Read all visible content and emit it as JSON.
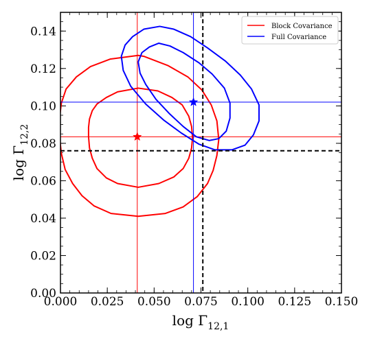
{
  "chart_data": {
    "type": "contour",
    "xlabel": "log Γ",
    "xlabel_sub": "12,1",
    "ylabel": "log Γ",
    "ylabel_sub": "12,2",
    "xlim": [
      0.0,
      0.15
    ],
    "ylim": [
      0.0,
      0.15
    ],
    "xticks": [
      0.0,
      0.025,
      0.05,
      0.075,
      0.1,
      0.125,
      0.15
    ],
    "xtick_labels": [
      "0.000",
      "0.025",
      "0.050",
      "0.075",
      "0.100",
      "0.125",
      "0.150"
    ],
    "yticks": [
      0.0,
      0.02,
      0.04,
      0.06,
      0.08,
      0.1,
      0.12,
      0.14
    ],
    "ytick_labels": [
      "0.00",
      "0.02",
      "0.04",
      "0.06",
      "0.08",
      "0.10",
      "0.12",
      "0.14"
    ],
    "legend_position": "top-right",
    "grid": false,
    "reference": {
      "x": 0.076,
      "y": 0.076,
      "color": "#000000",
      "style": "dashed"
    },
    "series": [
      {
        "name": "Block Covariance",
        "color": "#ff0000",
        "best_fit": {
          "x": 0.041,
          "y": 0.0835
        },
        "contours": [
          [
            [
              0.0415,
              0.1095
            ],
            [
              0.0305,
              0.1075
            ],
            [
              0.0245,
              0.1045
            ],
            [
              0.0195,
              0.101
            ],
            [
              0.017,
              0.0975
            ],
            [
              0.0155,
              0.093
            ],
            [
              0.015,
              0.0885
            ],
            [
              0.015,
              0.0835
            ],
            [
              0.0155,
              0.0775
            ],
            [
              0.017,
              0.072
            ],
            [
              0.0195,
              0.0665
            ],
            [
              0.0245,
              0.0615
            ],
            [
              0.0305,
              0.0585
            ],
            [
              0.0415,
              0.0565
            ],
            [
              0.0525,
              0.0585
            ],
            [
              0.0605,
              0.062
            ],
            [
              0.0655,
              0.0665
            ],
            [
              0.0685,
              0.072
            ],
            [
              0.07,
              0.0775
            ],
            [
              0.0705,
              0.083
            ],
            [
              0.07,
              0.089
            ],
            [
              0.0685,
              0.0945
            ],
            [
              0.065,
              0.1005
            ],
            [
              0.0595,
              0.1045
            ],
            [
              0.052,
              0.108
            ],
            [
              0.0415,
              0.1095
            ]
          ],
          [
            [
              0.0415,
              0.127
            ],
            [
              0.0265,
              0.125
            ],
            [
              0.016,
              0.121
            ],
            [
              0.0085,
              0.1155
            ],
            [
              0.003,
              0.109
            ],
            [
              0.0005,
              0.1015
            ],
            [
              -0.0005,
              0.0935
            ],
            [
              -0.0005,
              0.0835
            ],
            [
              0.0005,
              0.0745
            ],
            [
              0.0025,
              0.066
            ],
            [
              0.0065,
              0.0585
            ],
            [
              0.0115,
              0.052
            ],
            [
              0.018,
              0.0465
            ],
            [
              0.027,
              0.0425
            ],
            [
              0.0415,
              0.041
            ],
            [
              0.056,
              0.0425
            ],
            [
              0.0655,
              0.046
            ],
            [
              0.073,
              0.0515
            ],
            [
              0.0785,
              0.0585
            ],
            [
              0.0815,
              0.0655
            ],
            [
              0.0835,
              0.0735
            ],
            [
              0.0845,
              0.082
            ],
            [
              0.0835,
              0.092
            ],
            [
              0.0805,
              0.1005
            ],
            [
              0.0755,
              0.1085
            ],
            [
              0.068,
              0.1155
            ],
            [
              0.0575,
              0.1215
            ],
            [
              0.0445,
              0.1265
            ],
            [
              0.0415,
              0.127
            ]
          ]
        ]
      },
      {
        "name": "Full Covariance",
        "color": "#0000ff",
        "best_fit": {
          "x": 0.071,
          "y": 0.102
        },
        "contours": [
          [
            [
              0.0525,
              0.1335
            ],
            [
              0.0475,
              0.1315
            ],
            [
              0.0435,
              0.1285
            ],
            [
              0.0415,
              0.1235
            ],
            [
              0.0425,
              0.1175
            ],
            [
              0.0455,
              0.1115
            ],
            [
              0.051,
              0.1035
            ],
            [
              0.058,
              0.096
            ],
            [
              0.0655,
              0.089
            ],
            [
              0.0725,
              0.0835
            ],
            [
              0.0795,
              0.0815
            ],
            [
              0.0845,
              0.0825
            ],
            [
              0.0885,
              0.0865
            ],
            [
              0.0905,
              0.0935
            ],
            [
              0.0905,
              0.1015
            ],
            [
              0.0875,
              0.1095
            ],
            [
              0.081,
              0.117
            ],
            [
              0.074,
              0.123
            ],
            [
              0.0655,
              0.1285
            ],
            [
              0.0585,
              0.132
            ],
            [
              0.0525,
              0.1335
            ]
          ],
          [
            [
              0.053,
              0.1425
            ],
            [
              0.0445,
              0.141
            ],
            [
              0.0385,
              0.137
            ],
            [
              0.0345,
              0.1325
            ],
            [
              0.0325,
              0.1265
            ],
            [
              0.0335,
              0.119
            ],
            [
              0.0375,
              0.1105
            ],
            [
              0.0455,
              0.101
            ],
            [
              0.055,
              0.0925
            ],
            [
              0.0645,
              0.0855
            ],
            [
              0.074,
              0.0795
            ],
            [
              0.0825,
              0.0765
            ],
            [
              0.0915,
              0.0765
            ],
            [
              0.0985,
              0.079
            ],
            [
              0.103,
              0.0845
            ],
            [
              0.106,
              0.092
            ],
            [
              0.106,
              0.1005
            ],
            [
              0.102,
              0.109
            ],
            [
              0.096,
              0.1165
            ],
            [
              0.088,
              0.124
            ],
            [
              0.0785,
              0.131
            ],
            [
              0.0695,
              0.137
            ],
            [
              0.0605,
              0.141
            ],
            [
              0.053,
              0.1425
            ]
          ]
        ]
      }
    ]
  }
}
